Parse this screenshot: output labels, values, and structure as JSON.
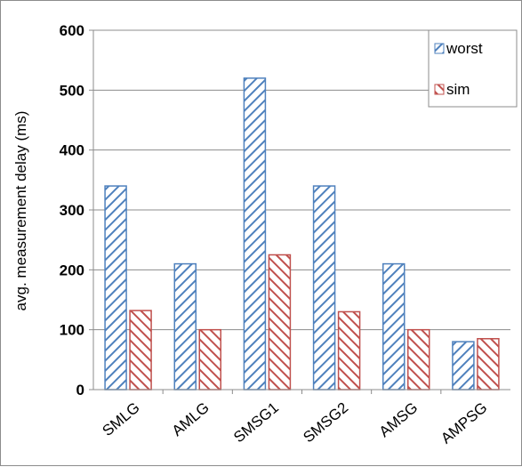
{
  "chart_data": {
    "type": "bar",
    "title": "",
    "xlabel": "",
    "ylabel": "avg. measurement delay (ms)",
    "categories": [
      "SMLG",
      "AMLG",
      "SMSG1",
      "SMSG2",
      "AMSG",
      "AMPSG"
    ],
    "series": [
      {
        "name": "worst",
        "values": [
          340,
          210,
          520,
          340,
          210,
          80
        ],
        "color": "#4f81bd",
        "pattern": "diagonal-hatch"
      },
      {
        "name": "sim",
        "values": [
          132,
          100,
          225,
          130,
          100,
          85
        ],
        "color": "#c0504d",
        "pattern": "diagonal-hatch"
      }
    ],
    "ylim": [
      0,
      600
    ],
    "yticks": [
      0,
      100,
      200,
      300,
      400,
      500,
      600
    ],
    "ytick_labels": [
      "0",
      "100",
      "200",
      "300",
      "400",
      "500",
      "600"
    ],
    "grid": true,
    "legend_position": "top-right"
  }
}
